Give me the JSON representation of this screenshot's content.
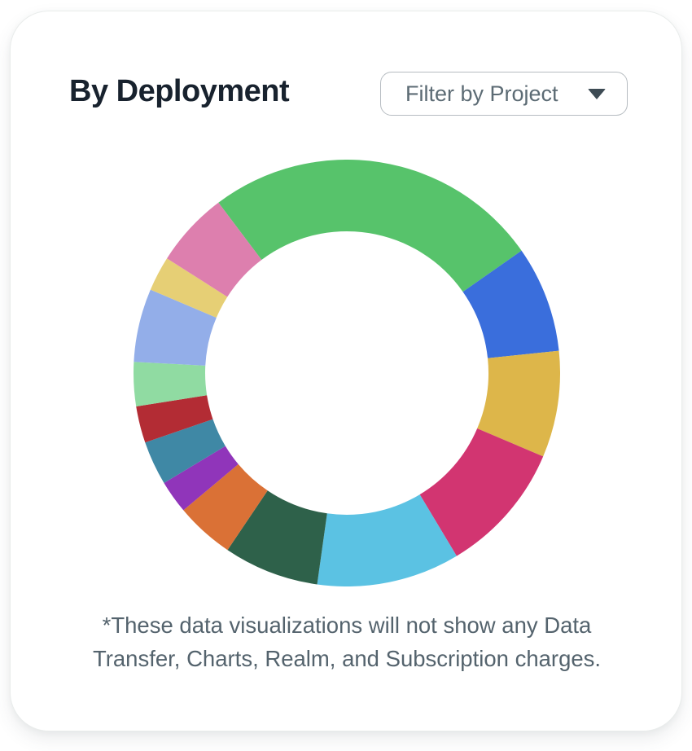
{
  "card": {
    "title": "By Deployment",
    "filter": {
      "label": "Filter by Project",
      "icon": "caret-down-icon"
    },
    "footnote": {
      "lines": [
        "*These data visualizations will not show any Data",
        "Transfer, Charts, Realm, and Subscription charges."
      ]
    }
  },
  "colors": {
    "title_text": "#18222E",
    "footnote_text": "#54636D",
    "dropdown_border": "#B6BCC1",
    "dropdown_text": "#5C6B74",
    "caret": "#3D4B54",
    "card_border": "#E9ECEB",
    "card_background": "#FFFFFF"
  },
  "chart_data": {
    "type": "pie",
    "variant": "donut",
    "title": "By Deployment",
    "legend": false,
    "data_labels_shown": false,
    "center_text": "",
    "start_angle_deg": -37,
    "outer_radius_px": 262,
    "inner_radius_px": 174,
    "segments": [
      {
        "color_name": "green",
        "color": "#57C36B",
        "angle_deg": 92,
        "pct": 25.6
      },
      {
        "color_name": "blue",
        "color": "#3A6EDC",
        "angle_deg": 29,
        "pct": 8.1
      },
      {
        "color_name": "gold",
        "color": "#DDB64A",
        "angle_deg": 29,
        "pct": 8.1
      },
      {
        "color_name": "magenta",
        "color": "#D23571",
        "angle_deg": 36,
        "pct": 10.0
      },
      {
        "color_name": "cyan",
        "color": "#5BC2E3",
        "angle_deg": 39,
        "pct": 10.8
      },
      {
        "color_name": "dark-green",
        "color": "#2E614A",
        "angle_deg": 26,
        "pct": 7.2
      },
      {
        "color_name": "orange",
        "color": "#DA7136",
        "angle_deg": 16,
        "pct": 4.4
      },
      {
        "color_name": "purple",
        "color": "#9035BA",
        "angle_deg": 9,
        "pct": 2.5
      },
      {
        "color_name": "teal",
        "color": "#3F88A5",
        "angle_deg": 12,
        "pct": 3.3
      },
      {
        "color_name": "red",
        "color": "#B32C34",
        "angle_deg": 10,
        "pct": 2.8
      },
      {
        "color_name": "mint",
        "color": "#90DBA2",
        "angle_deg": 12,
        "pct": 3.3
      },
      {
        "color_name": "periwinkle",
        "color": "#93AEE9",
        "angle_deg": 20,
        "pct": 5.6
      },
      {
        "color_name": "tan",
        "color": "#E6CF75",
        "angle_deg": 9.5,
        "pct": 2.6
      },
      {
        "color_name": "rose",
        "color": "#DD7FAE",
        "angle_deg": 20.5,
        "pct": 5.7
      }
    ]
  }
}
